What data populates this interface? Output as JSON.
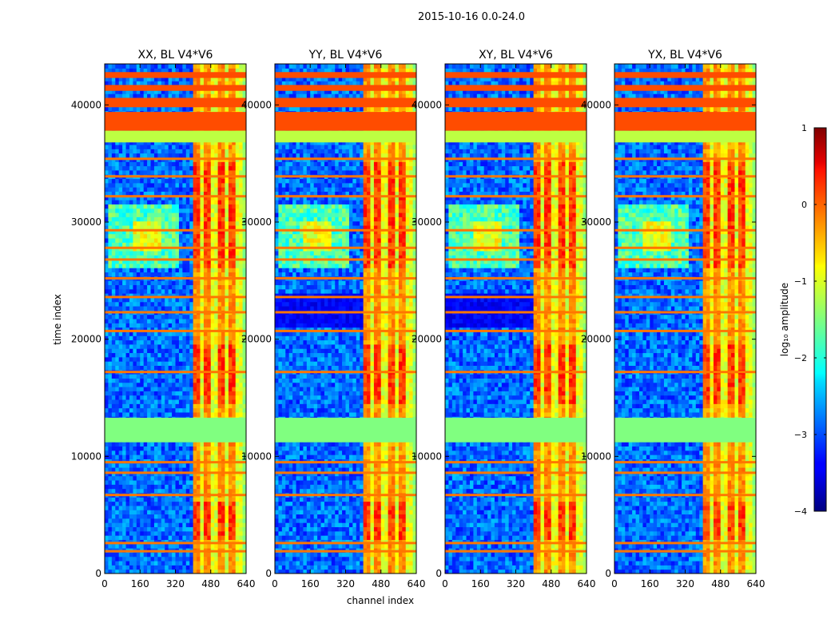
{
  "chart_data": {
    "type": "heatmap",
    "suptitle": "2015-10-16 0.0-24.0",
    "xlabel": "channel index",
    "ylabel": "time index",
    "xlim": [
      0,
      640
    ],
    "ylim": [
      0,
      43500
    ],
    "xticks": [
      0,
      160,
      320,
      480,
      640
    ],
    "yticks": [
      0,
      10000,
      20000,
      30000,
      40000
    ],
    "panels": [
      {
        "title": "XX, BL V4*V6",
        "polarization": "XX"
      },
      {
        "title": "YY, BL V4*V6",
        "polarization": "YY"
      },
      {
        "title": "XY, BL V4*V6",
        "polarization": "XY"
      },
      {
        "title": "YX, BL V4*V6",
        "polarization": "YX"
      }
    ],
    "flagged_time_bands": [
      {
        "start": 11200,
        "end": 13300,
        "value": -1.5
      },
      {
        "start": 36800,
        "end": 37800,
        "value": -1.2
      },
      {
        "start": 37800,
        "end": 39400,
        "value": 0.0
      },
      {
        "start": 39800,
        "end": 40600,
        "value": 0.0
      },
      {
        "start": 41200,
        "end": 41700,
        "value": 0.0
      },
      {
        "start": 42300,
        "end": 42800,
        "value": 0.0
      }
    ],
    "rfi_time_lines": [
      1900,
      2600,
      6700,
      8600,
      9500,
      17200,
      20700,
      22300,
      23600,
      25200,
      26800,
      27800,
      29300,
      32200,
      33900,
      35400
    ],
    "bright_channel_block": [
      400,
      620
    ],
    "colorbar": {
      "label": "log₁₀ amplitude",
      "vmin": -4,
      "vmax": 1,
      "ticks": [
        1,
        0,
        -1,
        -2,
        -3,
        -4
      ],
      "tick_labels": [
        "1",
        "0",
        "−1",
        "−2",
        "−3",
        "−4"
      ],
      "cmap": "jet"
    }
  }
}
